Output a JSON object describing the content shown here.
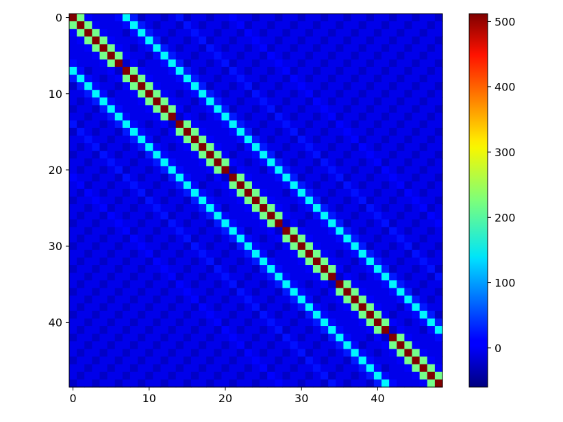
{
  "chart_data": {
    "type": "heatmap",
    "title": "",
    "xlabel": "",
    "ylabel": "",
    "size": 49,
    "colormap": "jet",
    "color_range": [
      -60,
      512
    ],
    "x_ticks": [
      0,
      10,
      20,
      30,
      40
    ],
    "y_ticks": [
      0,
      10,
      20,
      30,
      40
    ],
    "colorbar_ticks": [
      0,
      100,
      200,
      300,
      400,
      500
    ],
    "bands": [
      {
        "offset": 0,
        "values": [
          512,
          512,
          512,
          512,
          512,
          512,
          512,
          512,
          512,
          512,
          512,
          512,
          512,
          512,
          512,
          512,
          512,
          512,
          512,
          512,
          512,
          512,
          512,
          512,
          512,
          512,
          512,
          512,
          512,
          512,
          512,
          512,
          512,
          512,
          512,
          512,
          512,
          512,
          512,
          512,
          512,
          512,
          512,
          512,
          512,
          512,
          512,
          512,
          512
        ]
      },
      {
        "offset": 1,
        "values": [
          220,
          220,
          220,
          220,
          220,
          220,
          -20,
          220,
          220,
          220,
          220,
          220,
          220,
          -20,
          220,
          220,
          220,
          220,
          220,
          220,
          -20,
          220,
          220,
          220,
          220,
          220,
          220,
          -20,
          220,
          220,
          220,
          220,
          220,
          220,
          -20,
          220,
          220,
          220,
          220,
          220,
          220,
          -20,
          220,
          220,
          220,
          220,
          220,
          220
        ]
      },
      {
        "offset": 7,
        "values": [
          150,
          150,
          150,
          150,
          150,
          150,
          150,
          150,
          150,
          150,
          150,
          150,
          150,
          150,
          150,
          150,
          150,
          150,
          150,
          150,
          150,
          150,
          150,
          150,
          150,
          150,
          150,
          150,
          150,
          150,
          150,
          150,
          150,
          150,
          150,
          150,
          150,
          150,
          150,
          150,
          150,
          150
        ]
      },
      {
        "offset": 6,
        "values": [
          15,
          15,
          15,
          15,
          15,
          15,
          15,
          15,
          15,
          15,
          15,
          15,
          15,
          15,
          15,
          15,
          15,
          15,
          15,
          15,
          15,
          15,
          15,
          15,
          15,
          15,
          15,
          15,
          15,
          15,
          15,
          15,
          15,
          15,
          15,
          15,
          15,
          15,
          15,
          15,
          15,
          15,
          15
        ]
      },
      {
        "offset": 8,
        "values": [
          25,
          25,
          25,
          25,
          25,
          25,
          25,
          25,
          25,
          25,
          25,
          25,
          25,
          25,
          25,
          25,
          25,
          25,
          25,
          25,
          25,
          25,
          25,
          25,
          25,
          25,
          25,
          25,
          25,
          25,
          25,
          25,
          25,
          25,
          25,
          25,
          25,
          25,
          25,
          25,
          25
        ]
      },
      {
        "offset": 2,
        "values": [
          10,
          10,
          10,
          10,
          10,
          10,
          10,
          10,
          10,
          10,
          10,
          10,
          10,
          10,
          10,
          10,
          10,
          10,
          10,
          10,
          10,
          10,
          10,
          10,
          10,
          10,
          10,
          10,
          10,
          10,
          10,
          10,
          10,
          10,
          10,
          10,
          10,
          10,
          10,
          10,
          10,
          10,
          10,
          10,
          10,
          10,
          10
        ]
      },
      {
        "offset": 14,
        "values": [
          20,
          20,
          20,
          20,
          20,
          20,
          20,
          20,
          20,
          20,
          20,
          20,
          20,
          20,
          20,
          20,
          20,
          20,
          20,
          20,
          20,
          20,
          20,
          20,
          20,
          20,
          20,
          20,
          20,
          20,
          20,
          20,
          20,
          20,
          20
        ]
      },
      {
        "offset": 21,
        "values": [
          12,
          12,
          12,
          12,
          12,
          12,
          12,
          12,
          12,
          12,
          12,
          12,
          12,
          12,
          12,
          12,
          12,
          12,
          12,
          12,
          12,
          12,
          12,
          12,
          12,
          12,
          12,
          12
        ]
      }
    ],
    "background": 0,
    "block_dip": -40
  }
}
